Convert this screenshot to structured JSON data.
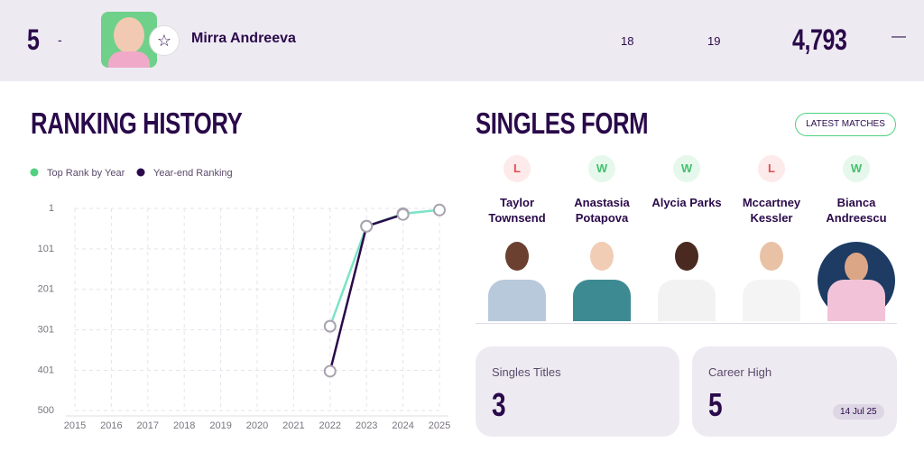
{
  "header": {
    "rank": "5",
    "movement": "-",
    "player": "Mirra Andreeva",
    "stat_a": "18",
    "stat_b": "19",
    "points": "4,793",
    "trend": "—"
  },
  "chart_data": {
    "type": "line",
    "title": "RANKING HISTORY",
    "x": [
      2022,
      2023,
      2024,
      2025
    ],
    "series": [
      {
        "name": "Top Rank by Year",
        "color": "#7be3c6",
        "legend_color": "#4fd27f",
        "values": [
          292,
          45,
          14,
          5
        ]
      },
      {
        "name": "Year-end Ranking",
        "color": "#2a0a4a",
        "legend_color": "#2a0a4a",
        "values": [
          403,
          45,
          16,
          null
        ]
      }
    ],
    "xlim": [
      2015,
      2025
    ],
    "xticks": [
      2015,
      2016,
      2017,
      2018,
      2019,
      2020,
      2021,
      2022,
      2023,
      2024,
      2025
    ],
    "ylim": [
      500,
      1
    ],
    "yticks": [
      1,
      101,
      201,
      301,
      401,
      500
    ],
    "grid": true
  },
  "form": {
    "title": "SINGLES FORM",
    "button": "LATEST MATCHES",
    "matches": [
      {
        "result": "L",
        "name": "Taylor Townsend"
      },
      {
        "result": "W",
        "name": "Anastasia Potapova"
      },
      {
        "result": "W",
        "name": "Alycia Parks"
      },
      {
        "result": "L",
        "name": "Mccartney Kessler"
      },
      {
        "result": "W",
        "name": "Bianca Andreescu"
      }
    ]
  },
  "cards": [
    {
      "label": "Singles Titles",
      "value": "3"
    },
    {
      "label": "Career High",
      "value": "5",
      "date": "14 Jul 25"
    }
  ]
}
